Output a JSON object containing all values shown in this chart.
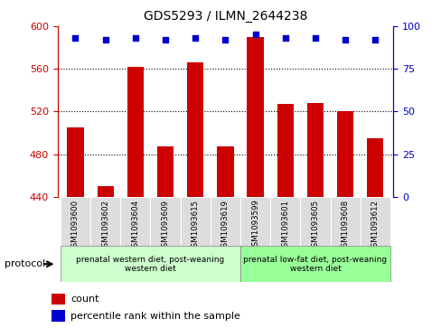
{
  "title": "GDS5293 / ILMN_2644238",
  "samples": [
    "GSM1093600",
    "GSM1093602",
    "GSM1093604",
    "GSM1093609",
    "GSM1093615",
    "GSM1093619",
    "GSM1093599",
    "GSM1093601",
    "GSM1093605",
    "GSM1093608",
    "GSM1093612"
  ],
  "counts": [
    505,
    450,
    562,
    487,
    566,
    487,
    590,
    527,
    528,
    520,
    495
  ],
  "percentiles": [
    93,
    92,
    93,
    92,
    93,
    92,
    95,
    93,
    93,
    92,
    92
  ],
  "bar_color": "#cc0000",
  "dot_color": "#0000cc",
  "ylim_left": [
    440,
    600
  ],
  "ylim_right": [
    0,
    100
  ],
  "yticks_left": [
    440,
    480,
    520,
    560,
    600
  ],
  "yticks_right": [
    0,
    25,
    50,
    75,
    100
  ],
  "grid_values": [
    480,
    520,
    560
  ],
  "protocol_group1_label": "prenatal western diet, post-weaning\nwestern diet",
  "protocol_group1_indices": [
    0,
    1,
    2,
    3,
    4,
    5
  ],
  "protocol_group1_color": "#ccffcc",
  "protocol_group2_label": "prenatal low-fat diet, post-weaning\nwestern diet",
  "protocol_group2_indices": [
    6,
    7,
    8,
    9,
    10
  ],
  "protocol_group2_color": "#99ff99",
  "protocol_label": "protocol",
  "legend_count": "count",
  "legend_percentile": "percentile rank within the sample",
  "background_color": "#ffffff",
  "plot_bg": "#ffffff",
  "label_area_color": "#dddddd"
}
